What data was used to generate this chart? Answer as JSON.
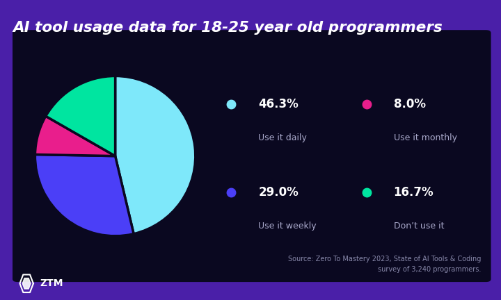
{
  "title": "AI tool usage data for 18-25 year old programmers",
  "title_color": "#ffffff",
  "outer_bg_color": "#4a1fa8",
  "inner_bg_color": "#0a0820",
  "inner_panel": [
    0.035,
    0.07,
    0.935,
    0.82
  ],
  "slices": [
    46.3,
    29.0,
    8.0,
    16.7
  ],
  "slice_colors": [
    "#7ee8fa",
    "#4b3ff7",
    "#e91e8c",
    "#00e5a0"
  ],
  "slice_labels": [
    "46.3%",
    "29.0%",
    "8.0%",
    "16.7%"
  ],
  "slice_sublabels": [
    "Use it daily",
    "Use it weekly",
    "Use it monthly",
    "Don’t use it"
  ],
  "legend_order": [
    0,
    2,
    1,
    3
  ],
  "source_text": "Source: Zero To Mastery 2023, State of AI Tools & Coding\nsurvey of 3,240 programmers.",
  "source_color": "#8888aa",
  "startangle": 90
}
